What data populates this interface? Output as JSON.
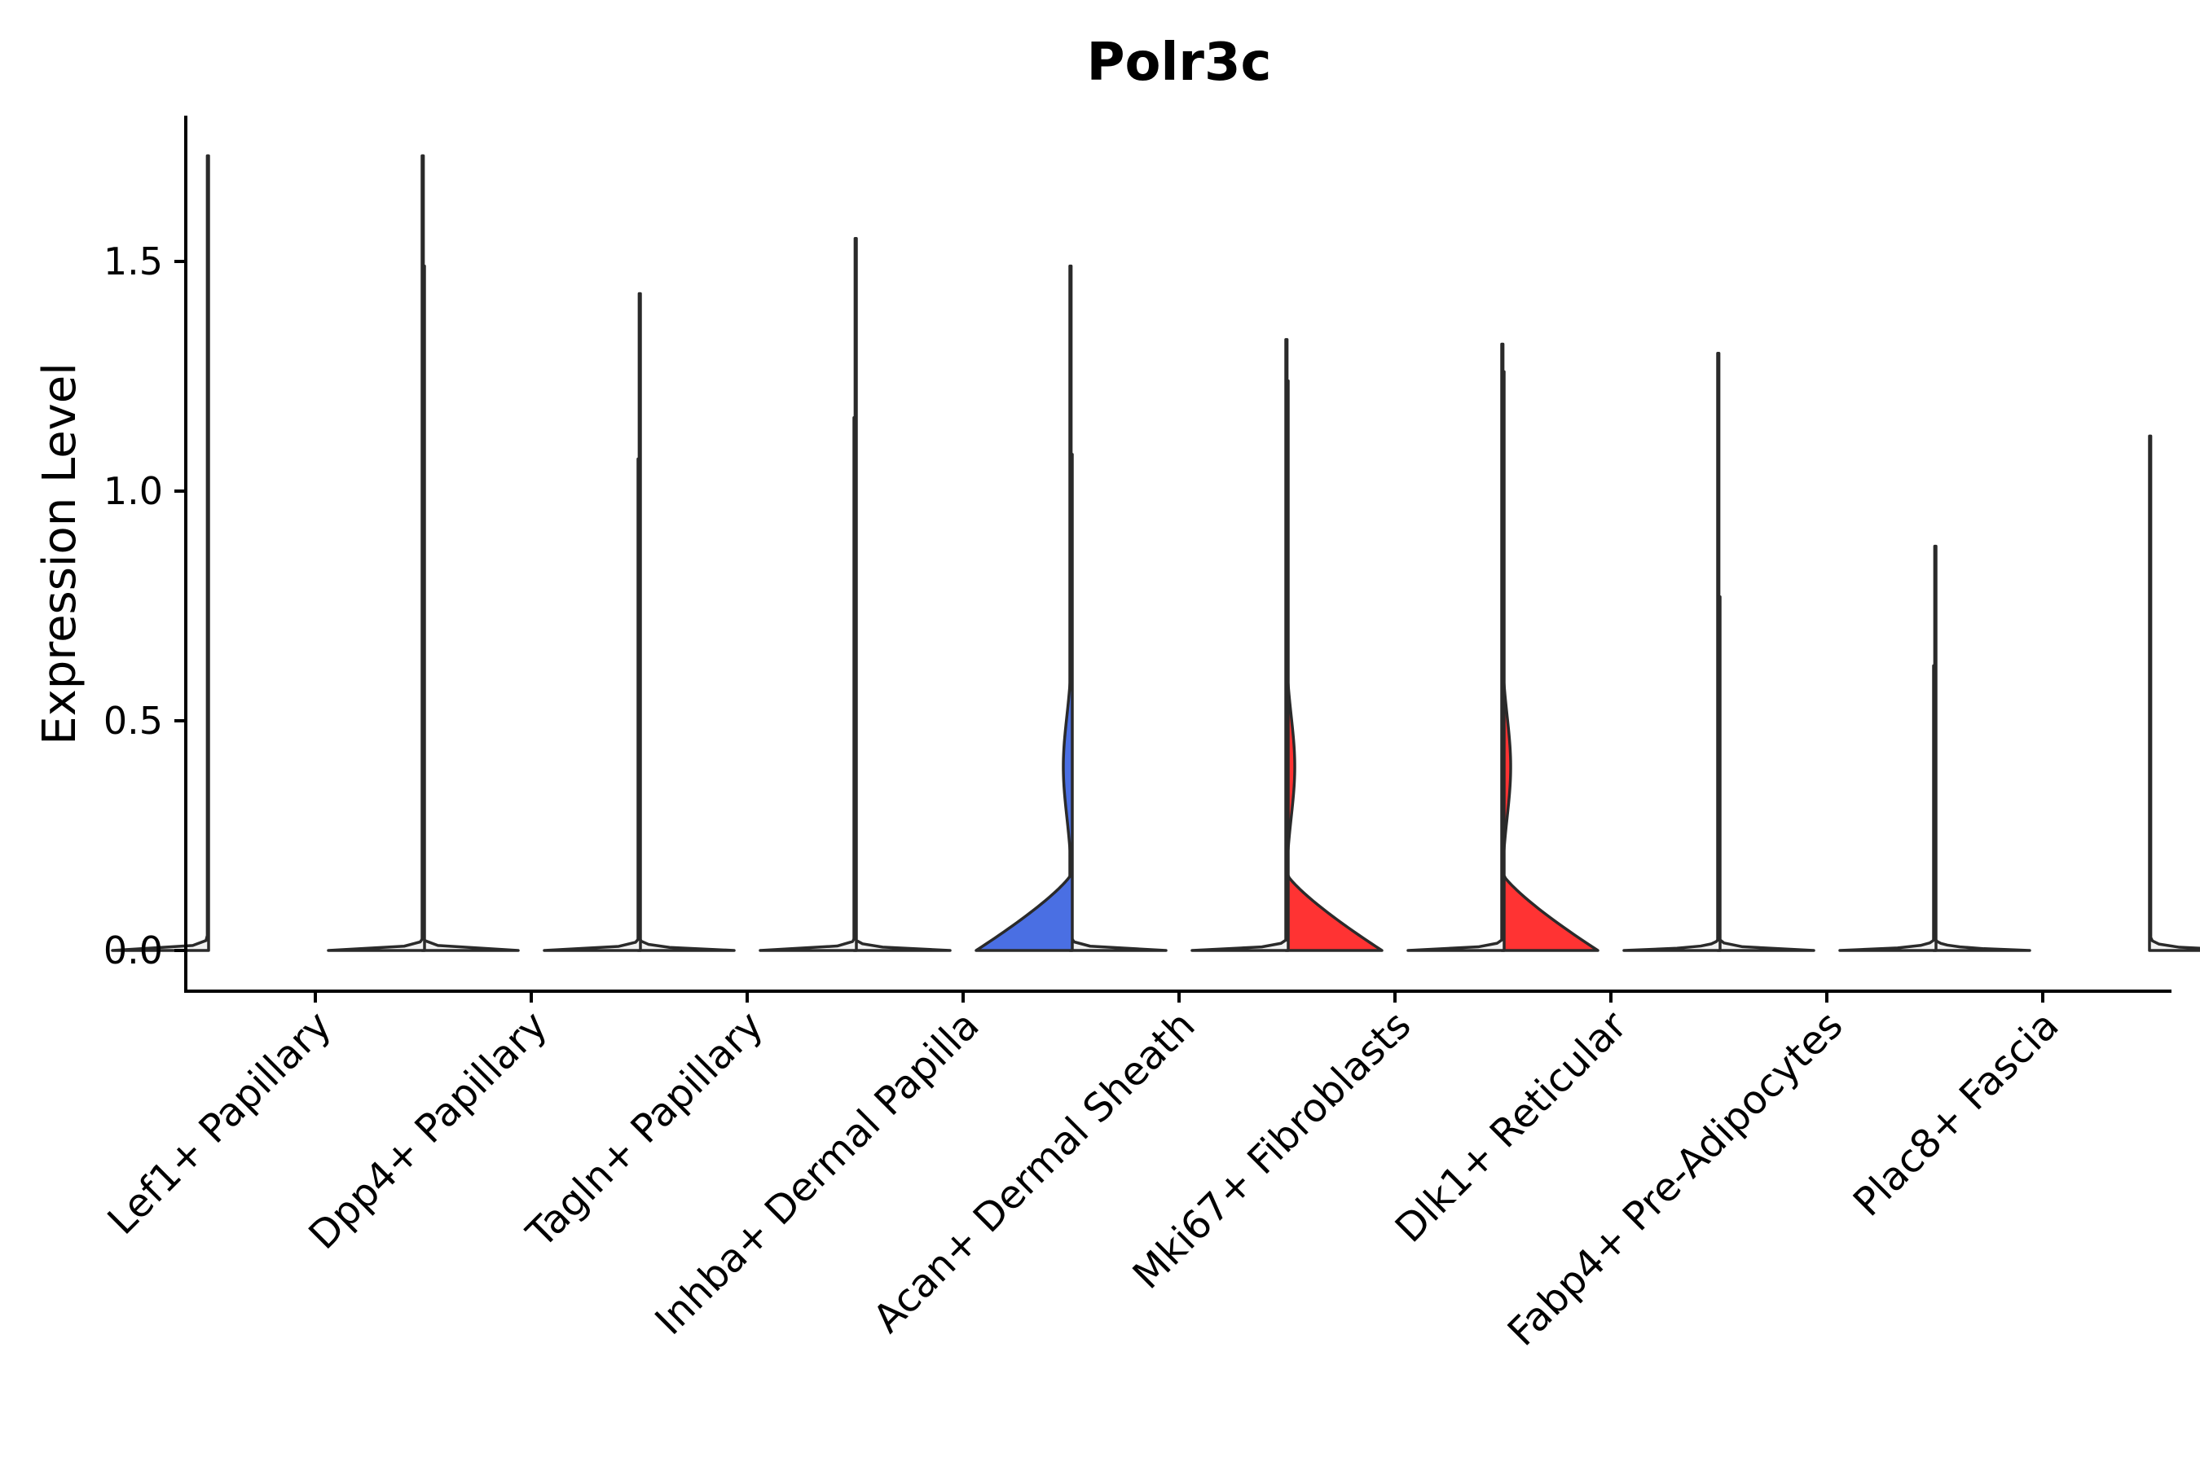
{
  "chart_data": {
    "type": "violin",
    "title": "Polr3c",
    "xlabel": "",
    "ylabel": "Expression Level",
    "ylim": [
      -0.09,
      1.82
    ],
    "yticks": [
      0.0,
      0.5,
      1.0,
      1.5
    ],
    "ytick_labels": [
      "0.0",
      "0.5",
      "1.0",
      "1.5"
    ],
    "grid": false,
    "legend": "none",
    "categories": [
      "Lef1+ Papillary",
      "Dpp4+ Papillary",
      "Tagln+ Papillary",
      "Inhba+ Dermal Papilla",
      "Acan+ Dermal Sheath",
      "Mki67+ Fibroblasts",
      "Dlk1+ Reticular",
      "Fabp4+ Pre-Adipocytes",
      "Plac8+ Fascia"
    ],
    "series": [
      {
        "name": "left-split",
        "color_default": "#f2f2f2",
        "max_values": [
          1.73,
          1.49,
          1.43,
          1.55,
          1.08,
          1.24,
          1.26,
          0.77,
          0.88
        ],
        "colors": [
          "#f2f2f2",
          "#f2f2f2",
          "#f2f2f2",
          "#f2f2f2",
          "#4a6fe3",
          "#f2f2f2",
          "#f2f2f2",
          "#f2f2f2",
          "#f2f2f2"
        ],
        "shapes": [
          "flat",
          "flat",
          "flat",
          "flat",
          "bimodal",
          "flat",
          "flat",
          "flat",
          "flat"
        ]
      },
      {
        "name": "right-split",
        "color_default": "#f2f2f2",
        "max_values": [
          1.73,
          1.07,
          1.16,
          1.49,
          1.33,
          1.32,
          1.3,
          0.62,
          1.12
        ],
        "colors": [
          "#f2f2f2",
          "#f2f2f2",
          "#f2f2f2",
          "#f2f2f2",
          "#ff3333",
          "#ff3333",
          "#f2f2f2",
          "#f2f2f2",
          "#f2f2f2"
        ],
        "shapes": [
          "flat",
          "flat",
          "flat",
          "flat",
          "bimodal",
          "bimodal",
          "flat",
          "flat",
          "flat"
        ]
      }
    ]
  }
}
